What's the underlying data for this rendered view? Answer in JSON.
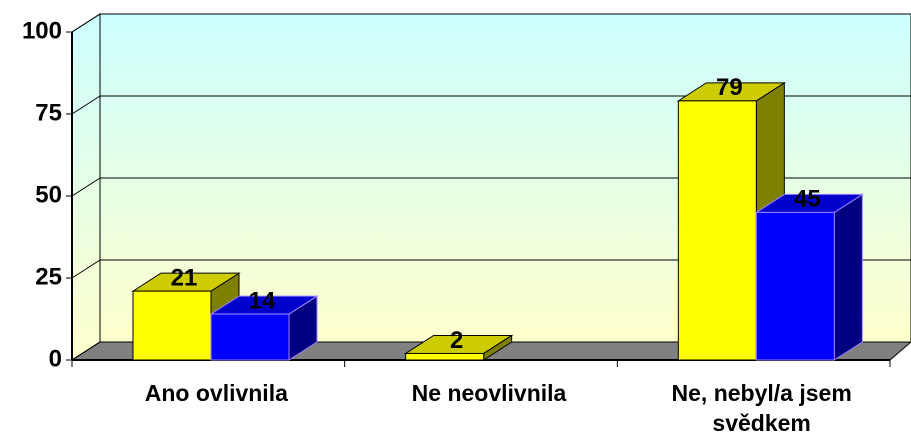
{
  "chart_data": {
    "type": "bar3d",
    "categories": [
      "Ano ovlivnila",
      "Ne neovlivnila",
      "Ne, nebyl/a jsem svědkem"
    ],
    "series": [
      {
        "color": "#ffff00",
        "values": [
          21,
          2,
          79
        ]
      },
      {
        "color": "#0000ff",
        "values": [
          14,
          null,
          45
        ]
      }
    ],
    "ylim": [
      0,
      100
    ],
    "yticks": [
      0,
      25,
      50,
      75,
      100
    ],
    "grid": true
  }
}
